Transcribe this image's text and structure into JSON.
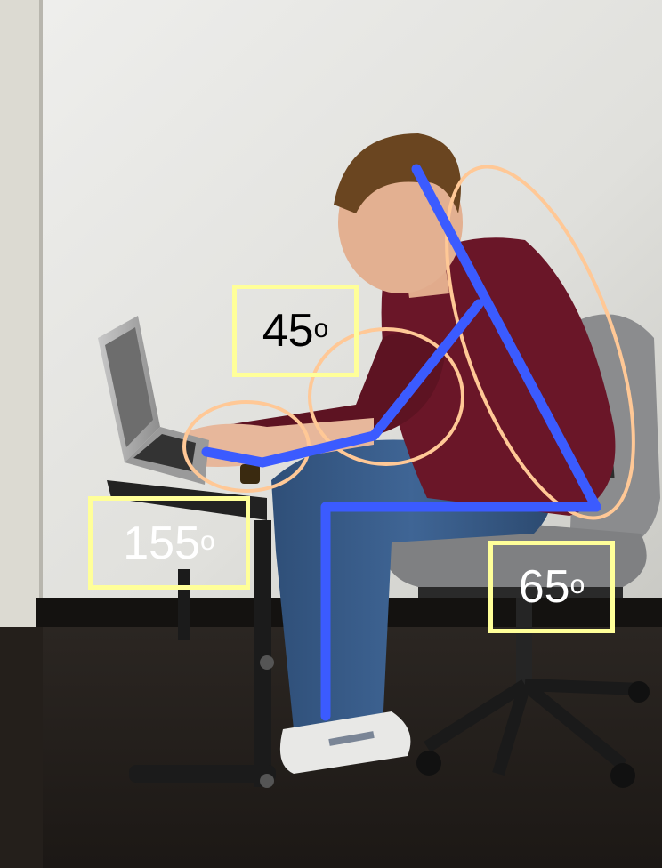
{
  "annotations": {
    "shoulder_angle": {
      "value": "45",
      "unit": "o"
    },
    "elbow_angle": {
      "value": "155",
      "unit": "o"
    },
    "hip_angle": {
      "value": "65",
      "unit": "o"
    }
  },
  "colors": {
    "posture_line": "#3b5bff",
    "highlight_ellipse": "#ffc896",
    "label_border": "#ffff99"
  }
}
